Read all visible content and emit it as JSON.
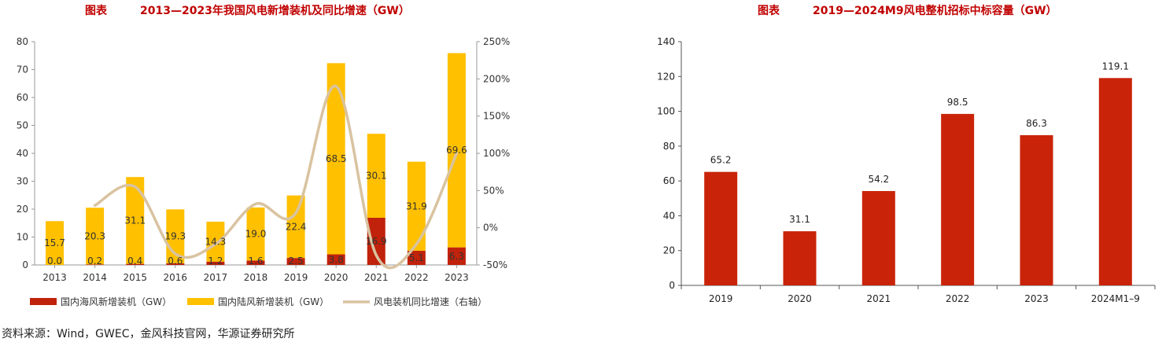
{
  "left_chart": {
    "title_prefix": "图表",
    "title_text": "2013—2023年我国风电新增装机及同比增速（GW）"
  },
  "right_chart": {
    "title_prefix": "图表",
    "title_text": "2019—2024M9风电整机招标中标容量（GW）"
  },
  "source": "资料来源：Wind，GWEC，金风科技官网，华源证券研究所",
  "colors": {
    "offshore": "#c0220b",
    "onshore": "#ffc000",
    "growth_line": "#d9c3a0",
    "tender_bar": "#c9240a",
    "title": "#c00000"
  },
  "chart_data": [
    {
      "type": "bar",
      "stacked": true,
      "categories": [
        "2013",
        "2014",
        "2015",
        "2016",
        "2017",
        "2018",
        "2019",
        "2020",
        "2021",
        "2022",
        "2023"
      ],
      "series": [
        {
          "name": "国内海风新增装机（GW）",
          "axis": "left",
          "values": [
            0.0,
            0.2,
            0.4,
            0.6,
            1.2,
            1.6,
            2.5,
            3.8,
            16.9,
            5.1,
            6.3
          ],
          "labels": [
            "0.0",
            "0.2",
            "0.4",
            "0.6",
            "1.2",
            "1.6",
            "2.5",
            "3.8",
            "16.9",
            "5.1",
            "6.3"
          ]
        },
        {
          "name": "国内陆风新增装机（GW）",
          "axis": "left",
          "values": [
            15.7,
            20.3,
            31.1,
            19.3,
            14.3,
            19.0,
            22.4,
            68.5,
            30.1,
            31.9,
            69.6
          ],
          "labels": [
            "15.7",
            "20.3",
            "31.1",
            "19.3",
            "14.3",
            "19.0",
            "22.4",
            "68.5",
            "30.1",
            "31.9",
            "69.6"
          ]
        },
        {
          "name": "风电装机同比增速（右轴）",
          "type": "line",
          "axis": "right",
          "x": [
            "2014",
            "2015",
            "2016",
            "2017",
            "2018",
            "2019",
            "2020",
            "2021",
            "2022",
            "2023"
          ],
          "values": [
            30,
            55,
            -35,
            -22,
            32,
            20,
            190,
            -37,
            -22,
            100
          ]
        }
      ],
      "y_left": {
        "min": 0,
        "max": 80,
        "ticks": [
          0,
          10,
          20,
          30,
          40,
          50,
          60,
          70,
          80
        ],
        "tick_labels": [
          "0",
          "10",
          "20",
          "30",
          "40",
          "50",
          "60",
          "70",
          "80"
        ]
      },
      "y_right": {
        "min": -50,
        "max": 250,
        "ticks": [
          -50,
          0,
          50,
          100,
          150,
          200,
          250
        ],
        "tick_labels": [
          "-50%",
          "0%",
          "50%",
          "100%",
          "150%",
          "200%",
          "250%"
        ]
      },
      "grid": false,
      "legend_position": "bottom"
    },
    {
      "type": "bar",
      "categories": [
        "2019",
        "2020",
        "2021",
        "2022",
        "2023",
        "2024M1–9"
      ],
      "values": [
        65.2,
        31.1,
        54.2,
        98.5,
        86.3,
        119.1
      ],
      "labels": [
        "65.2",
        "31.1",
        "54.2",
        "98.5",
        "86.3",
        "119.1"
      ],
      "y": {
        "min": 0,
        "max": 140,
        "ticks": [
          0,
          20,
          40,
          60,
          80,
          100,
          120,
          140
        ],
        "tick_labels": [
          "0",
          "20",
          "40",
          "60",
          "80",
          "100",
          "120",
          "140"
        ]
      },
      "grid": false,
      "legend_position": "none"
    }
  ]
}
